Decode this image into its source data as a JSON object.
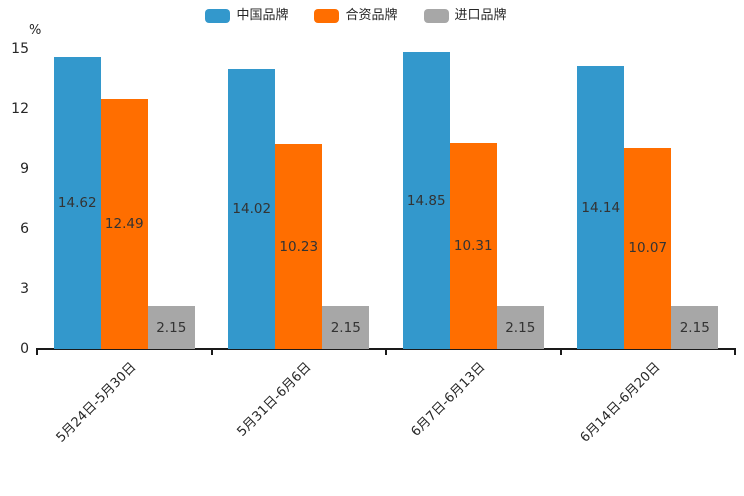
{
  "chart_data": {
    "type": "bar",
    "title": "",
    "unit_label": "%",
    "categories": [
      "5月24日-5月30日",
      "5月31日-6月6日",
      "6月7日-6月13日",
      "6月14日-6月20日"
    ],
    "series": [
      {
        "name": "中国品牌",
        "color": "#3398CC",
        "values": [
          14.62,
          14.02,
          14.85,
          14.14
        ]
      },
      {
        "name": "合资品牌",
        "color": "#FF6E00",
        "values": [
          12.49,
          10.23,
          10.31,
          10.07
        ]
      },
      {
        "name": "进口品牌",
        "color": "#A7A7A7",
        "values": [
          2.15,
          2.15,
          2.15,
          2.15
        ]
      }
    ],
    "ylim": [
      0,
      15
    ],
    "yticks": [
      0,
      3,
      6,
      9,
      12,
      15
    ],
    "legend_position": "top-center",
    "grid": false,
    "value_labels": "inside-center",
    "value_label_format": "2-decimals",
    "axis_color": "#1a1a1a",
    "text_color": "#262626"
  }
}
